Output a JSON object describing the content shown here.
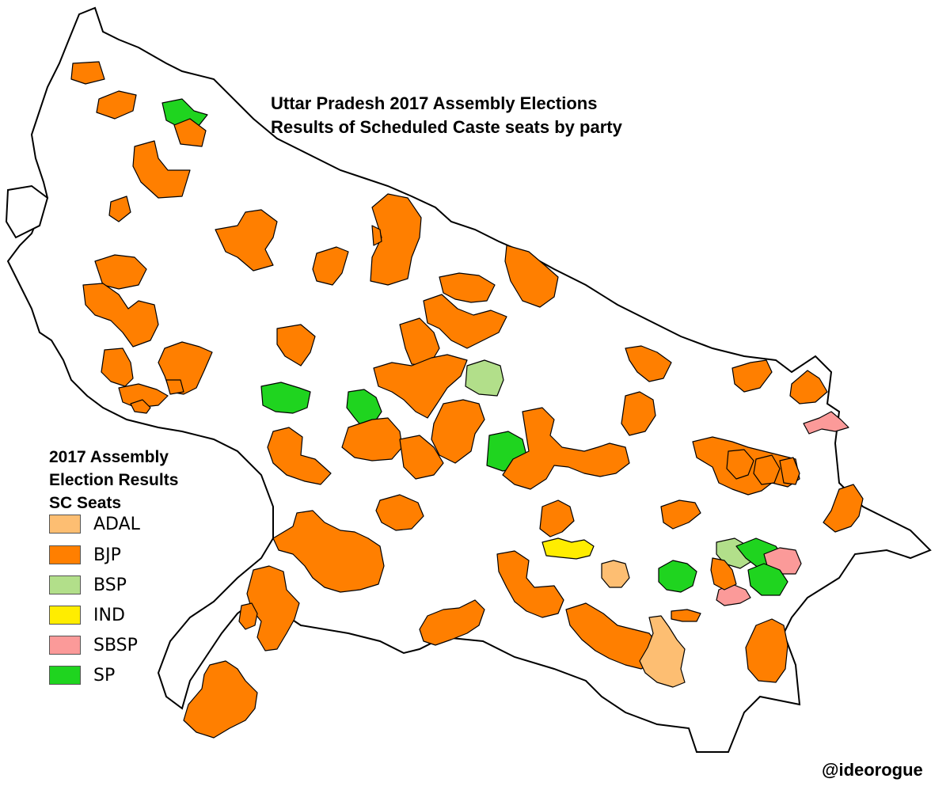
{
  "title": {
    "line1": "Uttar Pradesh 2017 Assembly Elections",
    "line2": "Results of Scheduled Caste seats by party"
  },
  "legend": {
    "heading1": "2017 Assembly",
    "heading2": "Election Results",
    "heading3": "SC Seats",
    "items": [
      {
        "label": "ADAL",
        "color": "#FDBE72"
      },
      {
        "label": "BJP",
        "color": "#FF7F00"
      },
      {
        "label": "BSP",
        "color": "#B2DF8A"
      },
      {
        "label": "IND",
        "color": "#FFED00"
      },
      {
        "label": "SBSP",
        "color": "#FB9A99"
      },
      {
        "label": "SP",
        "color": "#1FD41F"
      }
    ]
  },
  "credit": "@ideorogue",
  "colors": {
    "ADAL": "#FDBE72",
    "BJP": "#FF7F00",
    "BSP": "#B2DF8A",
    "IND": "#FFED00",
    "SBSP": "#FB9A99",
    "SP": "#1FD41F",
    "state_fill": "#FFFFFF",
    "outline": "#000000"
  }
}
